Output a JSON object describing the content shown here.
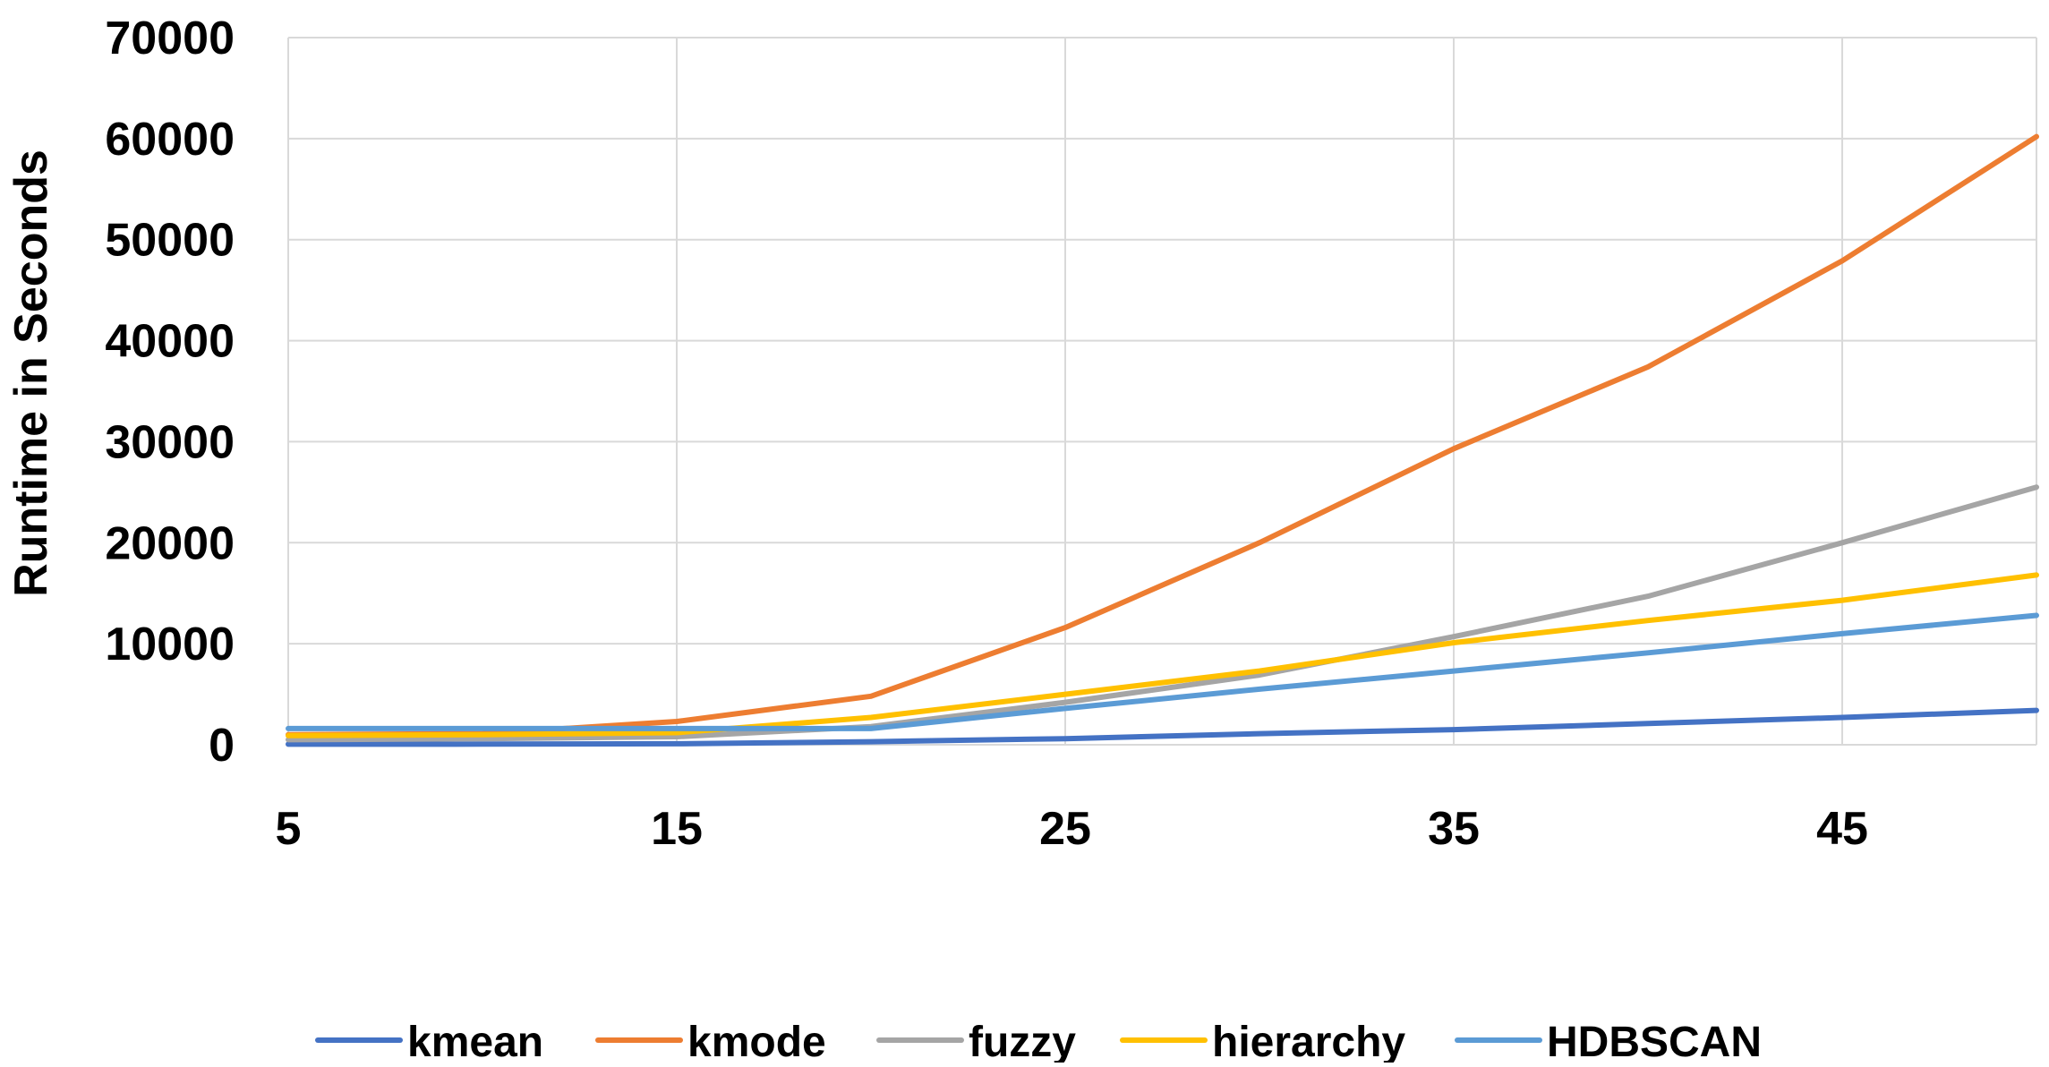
{
  "chart_data": {
    "type": "line",
    "title": "",
    "xlabel": "",
    "ylabel": "Runtime in Seconds",
    "x": [
      5,
      10,
      15,
      20,
      25,
      30,
      35,
      40,
      45,
      50
    ],
    "x_ticks": [
      "5",
      "15",
      "25",
      "35",
      "45"
    ],
    "x_tick_values": [
      5,
      15,
      25,
      35,
      45
    ],
    "xlim": [
      5,
      50
    ],
    "y_ticks": [
      "0",
      "10000",
      "20000",
      "30000",
      "40000",
      "50000",
      "60000",
      "70000"
    ],
    "y_tick_values": [
      0,
      10000,
      20000,
      30000,
      40000,
      50000,
      60000,
      70000
    ],
    "ylim": [
      0,
      70000
    ],
    "grid": true,
    "legend_position": "bottom",
    "series": [
      {
        "name": "kmean",
        "color": "#4472C4",
        "values": [
          50,
          60,
          100,
          300,
          600,
          1100,
          1500,
          2100,
          2700,
          3400
        ]
      },
      {
        "name": "kmode",
        "color": "#ED7D31",
        "values": [
          1000,
          1100,
          2300,
          4800,
          11600,
          20000,
          29300,
          37400,
          47900,
          60200
        ]
      },
      {
        "name": "fuzzy",
        "color": "#A5A5A5",
        "values": [
          500,
          600,
          800,
          1800,
          4200,
          6900,
          10700,
          14700,
          20000,
          25500
        ]
      },
      {
        "name": "hierarchy",
        "color": "#FFC000",
        "values": [
          900,
          1000,
          1200,
          2700,
          5000,
          7300,
          10100,
          12300,
          14300,
          16800
        ]
      },
      {
        "name": "HDBSCAN",
        "color": "#5B9BD5",
        "values": [
          1600,
          1600,
          1600,
          1600,
          3600,
          5500,
          7300,
          9100,
          11000,
          12800
        ]
      }
    ]
  }
}
